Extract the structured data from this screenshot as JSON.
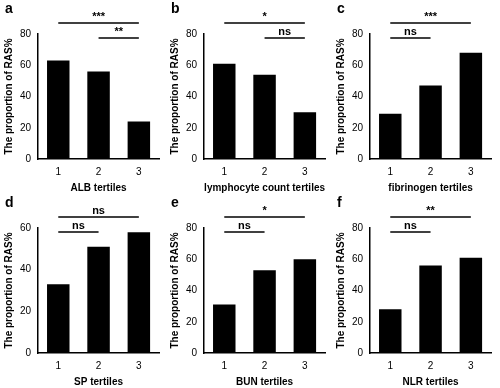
{
  "chart_data": [
    {
      "panel": "a",
      "type": "bar",
      "x_label": "ALB tertiles",
      "y_label": "The proportion of RAS%",
      "categories": [
        "1",
        "2",
        "3"
      ],
      "values": [
        63,
        56,
        24
      ],
      "color": "#000000",
      "ylim": [
        0,
        80
      ],
      "yticks": [
        0,
        20,
        40,
        60,
        80
      ],
      "grid": false,
      "annotations": [
        {
          "from": "2",
          "to": "3",
          "text": "**"
        },
        {
          "from": "1",
          "to": "3",
          "text": "***"
        }
      ]
    },
    {
      "panel": "b",
      "type": "bar",
      "x_label": "lymphocyte count tertiles",
      "y_label": "The proportion of RAS%",
      "categories": [
        "1",
        "2",
        "3"
      ],
      "values": [
        61,
        54,
        30
      ],
      "color": "#000000",
      "ylim": [
        0,
        80
      ],
      "yticks": [
        0,
        20,
        40,
        60,
        80
      ],
      "grid": false,
      "annotations": [
        {
          "from": "2",
          "to": "3",
          "text": "ns"
        },
        {
          "from": "1",
          "to": "3",
          "text": "*"
        }
      ]
    },
    {
      "panel": "c",
      "type": "bar",
      "x_label": "fibrinogen tertiles",
      "y_label": "The proportion of RAS%",
      "categories": [
        "1",
        "2",
        "3"
      ],
      "values": [
        29,
        47,
        68
      ],
      "color": "#000000",
      "ylim": [
        0,
        80
      ],
      "yticks": [
        0,
        20,
        40,
        60,
        80
      ],
      "grid": false,
      "annotations": [
        {
          "from": "1",
          "to": "2",
          "text": "ns"
        },
        {
          "from": "1",
          "to": "3",
          "text": "***"
        }
      ]
    },
    {
      "panel": "d",
      "type": "bar",
      "x_label": "SP tertiles",
      "y_label": "The proportion of RAS%",
      "categories": [
        "1",
        "2",
        "3"
      ],
      "values": [
        33,
        51,
        58
      ],
      "color": "#000000",
      "ylim": [
        0,
        60
      ],
      "yticks": [
        0,
        20,
        40,
        60
      ],
      "grid": false,
      "annotations": [
        {
          "from": "1",
          "to": "2",
          "text": "ns"
        },
        {
          "from": "1",
          "to": "3",
          "text": "ns"
        }
      ]
    },
    {
      "panel": "e",
      "type": "bar",
      "x_label": "BUN tertiles",
      "y_label": "The proportion of RAS%",
      "categories": [
        "1",
        "2",
        "3"
      ],
      "values": [
        31,
        53,
        60
      ],
      "color": "#000000",
      "ylim": [
        0,
        80
      ],
      "yticks": [
        0,
        20,
        40,
        60,
        80
      ],
      "grid": false,
      "annotations": [
        {
          "from": "1",
          "to": "2",
          "text": "ns"
        },
        {
          "from": "1",
          "to": "3",
          "text": "*"
        }
      ]
    },
    {
      "panel": "f",
      "type": "bar",
      "x_label": "NLR tertiles",
      "y_label": "The proportion of RAS%",
      "categories": [
        "1",
        "2",
        "3"
      ],
      "values": [
        28,
        56,
        61
      ],
      "color": "#000000",
      "ylim": [
        0,
        80
      ],
      "yticks": [
        0,
        20,
        40,
        60,
        80
      ],
      "grid": false,
      "annotations": [
        {
          "from": "1",
          "to": "2",
          "text": "ns"
        },
        {
          "from": "1",
          "to": "3",
          "text": "**"
        }
      ]
    }
  ]
}
